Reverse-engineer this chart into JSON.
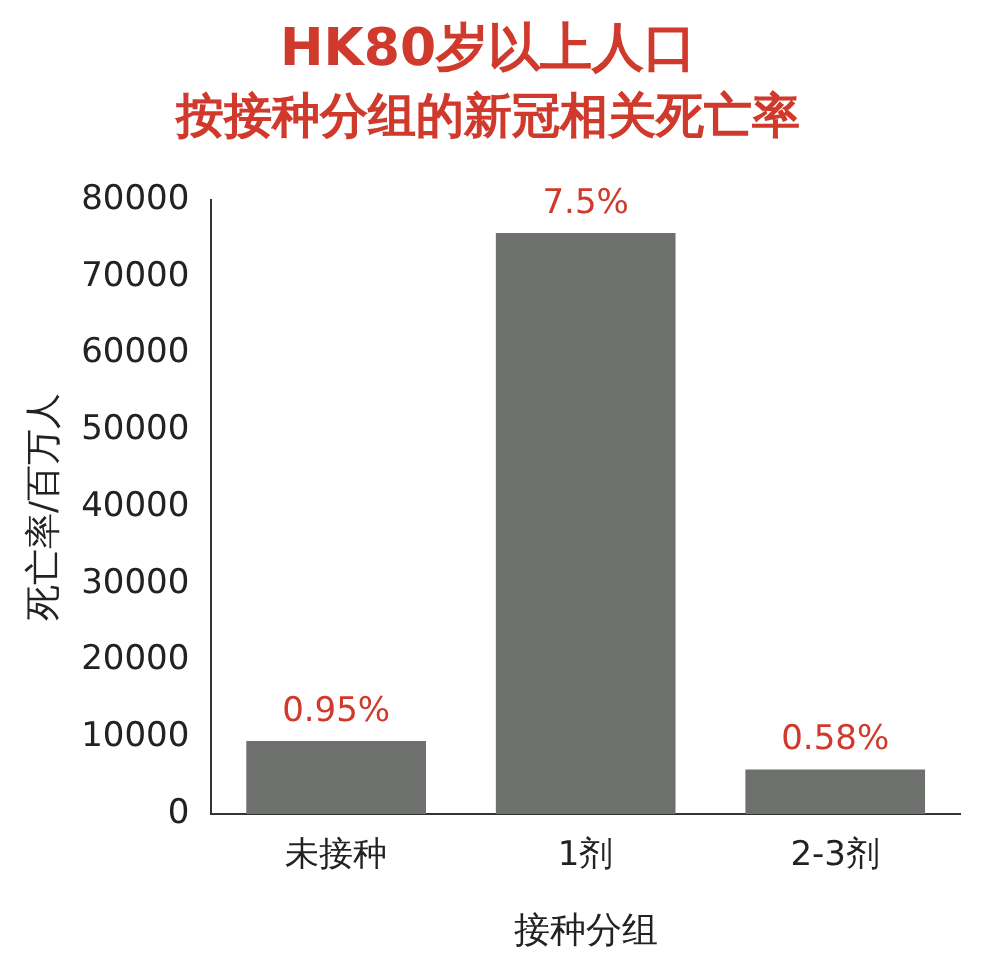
{
  "chart_data": {
    "type": "bar",
    "title": "HK80岁以上人口",
    "subtitle": "按接种分组的新冠相关死亡率",
    "xlabel": "接种分组",
    "ylabel": "死亡率/百万人",
    "categories": [
      "未接种",
      "1剂",
      "2-3剂"
    ],
    "values": [
      9500,
      75700,
      5800
    ],
    "annotations": [
      {
        "text": "0.95%",
        "x": "未接种",
        "y": 9500
      },
      {
        "text": "7.5%",
        "x": "1剂",
        "y": 75700
      },
      {
        "text": "0.58%",
        "x": "2-3剂",
        "y": 5800
      }
    ],
    "color": "#6e706e",
    "ylim": [
      0,
      80000
    ],
    "yticks": [
      0,
      10000,
      20000,
      30000,
      40000,
      50000,
      60000,
      70000,
      80000
    ],
    "grid": false,
    "legend": false
  }
}
